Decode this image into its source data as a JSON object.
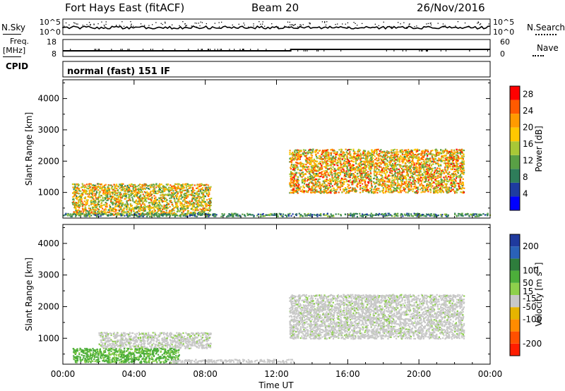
{
  "header": {
    "station": "Fort Hays East (fitACF)",
    "beam": "Beam 20",
    "date": "26/Nov/2016"
  },
  "noise_panel": {
    "left_label": "N.Sky",
    "right_label": "N.Search",
    "ticks": [
      "10^5",
      "10^0"
    ],
    "left_series_style": "dots",
    "right_series_style": "dotted"
  },
  "freq_panel": {
    "left_label_line1": "Freq.",
    "left_label_line2": "[MHz]",
    "left_ticks": [
      "18",
      "8"
    ],
    "right_label": "Nave",
    "right_ticks": [
      "60",
      "0"
    ]
  },
  "cpid_panel": {
    "label": "CPID",
    "text": "normal (fast) 151 IF"
  },
  "colors": {
    "power_scale": [
      "#0000ff",
      "#1e3ca0",
      "#2e7d5a",
      "#59a045",
      "#a8c837",
      "#ffc800",
      "#ff9b00",
      "#ff5a00",
      "#ff0000"
    ],
    "velocity_scale": [
      "#1f3a9e",
      "#2a62b8",
      "#2e7d3c",
      "#4cae3a",
      "#8ed04c",
      "#c8c8c8",
      "#e6b400",
      "#ff8c00",
      "#ff5000",
      "#ff1e00"
    ],
    "grey_scatter": "#c8c8c8"
  },
  "chart_data": [
    {
      "type": "heatmap",
      "panel": "power",
      "xlabel": "",
      "ylabel": "Slant Range [km]",
      "x_ticks": [
        "00:00",
        "04:00",
        "08:00",
        "12:00",
        "16:00",
        "20:00",
        "00:00"
      ],
      "xlim_hours": [
        0,
        24
      ],
      "ylim": [
        180,
        4600
      ],
      "y_ticks": [
        1000,
        2000,
        3000,
        4000
      ],
      "colorbar_label": "Power [dB]",
      "colorbar_ticks": [
        4,
        8,
        12,
        16,
        20,
        24,
        28
      ],
      "colorbar_range": [
        0,
        30
      ],
      "regions": [
        {
          "t_start": 0.5,
          "t_end": 8.3,
          "r_low": 300,
          "r_high": 1300,
          "peak_db": 26
        },
        {
          "t_start": 12.7,
          "t_end": 22.5,
          "r_low": 1000,
          "r_high": 2400,
          "peak_db": 28
        },
        {
          "t_start": 0,
          "t_end": 24,
          "r_low": 250,
          "r_high": 350,
          "peak_db": 14
        }
      ]
    },
    {
      "type": "heatmap",
      "panel": "velocity",
      "xlabel": "Time UT",
      "ylabel": "Slant Range [km]",
      "x_ticks": [
        "00:00",
        "04:00",
        "08:00",
        "12:00",
        "16:00",
        "20:00",
        "00:00"
      ],
      "xlim_hours": [
        0,
        24
      ],
      "ylim": [
        180,
        4600
      ],
      "y_ticks": [
        1000,
        2000,
        3000,
        4000
      ],
      "colorbar_label": "Velocity [m s^-1]",
      "colorbar_ticks": [
        200,
        100,
        50,
        15,
        -15,
        -50,
        -100,
        -200
      ],
      "colorbar_range": [
        -250,
        250
      ],
      "regions": [
        {
          "t_start": 2,
          "t_end": 8.3,
          "r_low": 700,
          "r_high": 1200,
          "velocity": 0
        },
        {
          "t_start": 12.7,
          "t_end": 22.5,
          "r_low": 1000,
          "r_high": 2400,
          "velocity": 0
        },
        {
          "t_start": 0.5,
          "t_end": 6.5,
          "r_low": 250,
          "r_high": 700,
          "velocity": 60
        },
        {
          "t_start": 6,
          "t_end": 13,
          "r_low": 250,
          "r_high": 350,
          "velocity": -30
        }
      ]
    }
  ]
}
